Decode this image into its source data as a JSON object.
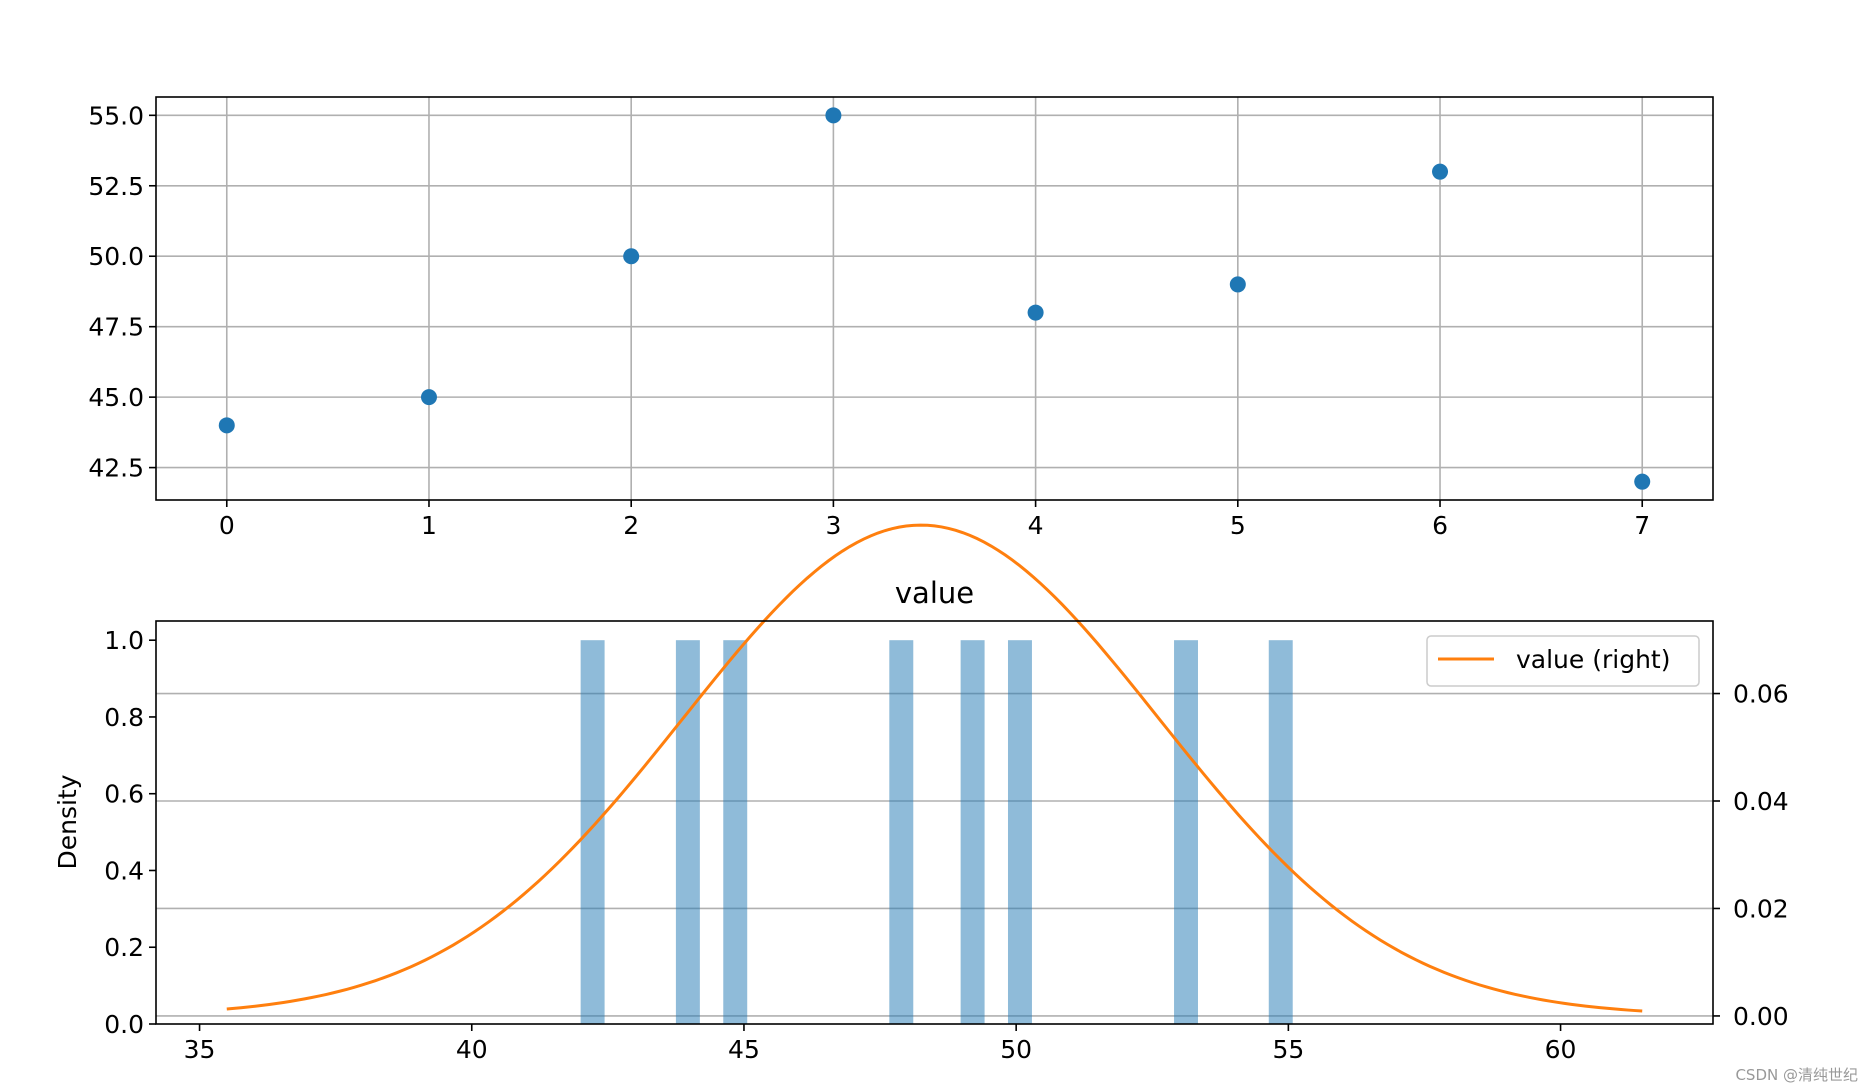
{
  "watermark": "CSDN @清纯世纪",
  "chart_data": [
    {
      "type": "scatter",
      "title": "",
      "xlabel": "",
      "ylabel": "",
      "x": [
        0,
        1,
        2,
        3,
        4,
        5,
        6,
        7
      ],
      "y": [
        44,
        45,
        50,
        55,
        48,
        49,
        53,
        42
      ],
      "xlim": [
        -0.35,
        7.35
      ],
      "ylim": [
        41.35,
        55.65
      ],
      "xticks": [
        "0",
        "1",
        "2",
        "3",
        "4",
        "5",
        "6",
        "7"
      ],
      "yticks": [
        "42.5",
        "45.0",
        "47.5",
        "50.0",
        "52.5",
        "55.0"
      ],
      "grid": true,
      "color": "#1f77b4"
    },
    {
      "type": "bar",
      "title": "value",
      "xlabel": "",
      "ylabel": "Density",
      "bars": [
        {
          "x0": 42.0,
          "x1": 42.44,
          "value": 1.0
        },
        {
          "x0": 43.75,
          "x1": 44.19,
          "value": 1.0
        },
        {
          "x0": 44.62,
          "x1": 45.06,
          "value": 1.0
        },
        {
          "x0": 47.67,
          "x1": 48.11,
          "value": 1.0
        },
        {
          "x0": 48.98,
          "x1": 49.42,
          "value": 1.0
        },
        {
          "x0": 49.85,
          "x1": 50.29,
          "value": 1.0
        },
        {
          "x0": 52.9,
          "x1": 53.34,
          "value": 1.0
        },
        {
          "x0": 54.64,
          "x1": 55.08,
          "value": 1.0
        }
      ],
      "bar_color": "#1f77b4",
      "bar_alpha": 0.5,
      "xlim": [
        34.2,
        62.8
      ],
      "ylim": [
        0.0,
        1.05
      ],
      "xticks": [
        "35",
        "40",
        "45",
        "50",
        "55",
        "60"
      ],
      "yticks": [
        "0.0",
        "0.2",
        "0.4",
        "0.6",
        "0.8",
        "1.0"
      ],
      "secondary_y": {
        "ylim": [
          -0.0015,
          0.0735
        ],
        "yticks": [
          "0.00",
          "0.02",
          "0.04",
          "0.06"
        ],
        "grid": true
      },
      "series": [
        {
          "name": "value (right)",
          "type": "line",
          "axis": "right",
          "color": "#ff7f0e",
          "mean": 48.25,
          "std": 4.367,
          "x_range": [
            35.5,
            61.5
          ]
        }
      ],
      "legend": "top-right"
    }
  ]
}
